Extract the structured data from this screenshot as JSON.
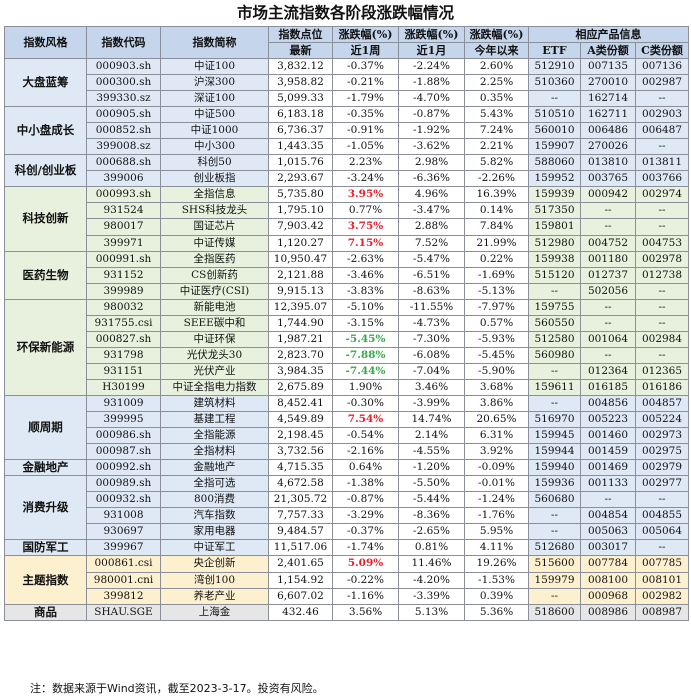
{
  "title": "市场主流指数各阶段涨跌幅情况",
  "headers": {
    "style": "指数风格",
    "code": "指数代码",
    "name": "指数简称",
    "level_top": "指数点位",
    "level_bottom": "最新",
    "chg_w_top": "涨跌幅(%)",
    "chg_w_bottom": "近1周",
    "chg_m_top": "涨跌幅(%)",
    "chg_m_bottom": "近1月",
    "chg_y_top": "涨跌幅(%)",
    "chg_y_bottom": "今年以来",
    "products": "相应产品信息",
    "etf": "ETF",
    "a_share": "A类份额",
    "c_share": "C类份额"
  },
  "colors": {
    "header_bg": "#c5d6ec",
    "up": "#e8202a",
    "down": "#39a84a"
  },
  "groups": [
    {
      "name": "大盘蓝筹",
      "theme": "blue",
      "rows": [
        {
          "code": "000903.sh",
          "name": "中证100",
          "level": "3,832.12",
          "w": "-0.37%",
          "m": "-2.24%",
          "y": "2.60%",
          "etf": "512910",
          "a": "007135",
          "c": "007136",
          "hl": ""
        },
        {
          "code": "000300.sh",
          "name": "沪深300",
          "level": "3,958.82",
          "w": "-0.21%",
          "m": "-1.88%",
          "y": "2.25%",
          "etf": "510360",
          "a": "270010",
          "c": "002987",
          "hl": ""
        },
        {
          "code": "399330.sz",
          "name": "深证100",
          "level": "5,099.33",
          "w": "-1.79%",
          "m": "-4.70%",
          "y": "0.35%",
          "etf": "--",
          "a": "162714",
          "c": "--",
          "hl": ""
        }
      ]
    },
    {
      "name": "中小盘成长",
      "theme": "blue",
      "rows": [
        {
          "code": "000905.sh",
          "name": "中证500",
          "level": "6,183.18",
          "w": "-0.35%",
          "m": "-0.87%",
          "y": "5.43%",
          "etf": "510510",
          "a": "162711",
          "c": "002903",
          "hl": ""
        },
        {
          "code": "000852.sh",
          "name": "中证1000",
          "level": "6,736.37",
          "w": "-0.91%",
          "m": "-1.92%",
          "y": "7.24%",
          "etf": "560010",
          "a": "006486",
          "c": "006487",
          "hl": ""
        },
        {
          "code": "399008.sz",
          "name": "中小300",
          "level": "1,443.35",
          "w": "-1.05%",
          "m": "-3.62%",
          "y": "2.21%",
          "etf": "159907",
          "a": "270026",
          "c": "--",
          "hl": ""
        }
      ]
    },
    {
      "name": "科创/创业板",
      "theme": "blue",
      "rows": [
        {
          "code": "000688.sh",
          "name": "科创50",
          "level": "1,015.76",
          "w": "2.23%",
          "m": "2.98%",
          "y": "5.82%",
          "etf": "588060",
          "a": "013810",
          "c": "013811",
          "hl": ""
        },
        {
          "code": "399006",
          "name": "创业板指",
          "level": "2,293.67",
          "w": "-3.24%",
          "m": "-6.36%",
          "y": "-2.26%",
          "etf": "159952",
          "a": "003765",
          "c": "003766",
          "hl": ""
        }
      ]
    },
    {
      "name": "科技创新",
      "theme": "green",
      "rows": [
        {
          "code": "000993.sh",
          "name": "全指信息",
          "level": "5,735.80",
          "w": "3.95%",
          "m": "4.96%",
          "y": "16.39%",
          "etf": "159939",
          "a": "000942",
          "c": "002974",
          "hl": "up"
        },
        {
          "code": "931524",
          "name": "SHS科技龙头",
          "level": "1,795.10",
          "w": "0.77%",
          "m": "-3.47%",
          "y": "0.14%",
          "etf": "517350",
          "a": "--",
          "c": "--",
          "hl": ""
        },
        {
          "code": "980017",
          "name": "国证芯片",
          "level": "7,903.42",
          "w": "3.75%",
          "m": "2.88%",
          "y": "7.84%",
          "etf": "159801",
          "a": "--",
          "c": "--",
          "hl": "up"
        },
        {
          "code": "399971",
          "name": "中证传媒",
          "level": "1,120.27",
          "w": "7.15%",
          "m": "7.52%",
          "y": "21.99%",
          "etf": "512980",
          "a": "004752",
          "c": "004753",
          "hl": "up"
        }
      ]
    },
    {
      "name": "医药生物",
      "theme": "green",
      "rows": [
        {
          "code": "000991.sh",
          "name": "全指医药",
          "level": "10,950.47",
          "w": "-2.63%",
          "m": "-5.47%",
          "y": "0.22%",
          "etf": "159938",
          "a": "001180",
          "c": "002978",
          "hl": ""
        },
        {
          "code": "931152",
          "name": "CS创新药",
          "level": "2,121.88",
          "w": "-3.46%",
          "m": "-6.51%",
          "y": "-1.69%",
          "etf": "515120",
          "a": "012737",
          "c": "012738",
          "hl": ""
        },
        {
          "code": "399989",
          "name": "中证医疗(CSI)",
          "level": "9,915.13",
          "w": "-3.83%",
          "m": "-8.63%",
          "y": "-5.13%",
          "etf": "--",
          "a": "502056",
          "c": "--",
          "hl": ""
        }
      ]
    },
    {
      "name": "环保新能源",
      "theme": "green",
      "rows": [
        {
          "code": "980032",
          "name": "新能电池",
          "level": "12,395.07",
          "w": "-5.10%",
          "m": "-11.55%",
          "y": "-7.97%",
          "etf": "159755",
          "a": "--",
          "c": "--",
          "hl": ""
        },
        {
          "code": "931755.csi",
          "name": "SEEE碳中和",
          "level": "1,744.90",
          "w": "-3.15%",
          "m": "-4.73%",
          "y": "0.57%",
          "etf": "560550",
          "a": "--",
          "c": "--",
          "hl": ""
        },
        {
          "code": "000827.sh",
          "name": "中证环保",
          "level": "1,987.21",
          "w": "-5.45%",
          "m": "-7.30%",
          "y": "-5.93%",
          "etf": "512580",
          "a": "001064",
          "c": "002984",
          "hl": "down"
        },
        {
          "code": "931798",
          "name": "光伏龙头30",
          "level": "2,823.70",
          "w": "-7.88%",
          "m": "-6.08%",
          "y": "-5.45%",
          "etf": "560980",
          "a": "--",
          "c": "--",
          "hl": "down"
        },
        {
          "code": "931151",
          "name": "光伏产业",
          "level": "3,984.35",
          "w": "-7.44%",
          "m": "-7.04%",
          "y": "-5.90%",
          "etf": "--",
          "a": "012364",
          "c": "012365",
          "hl": "down"
        },
        {
          "code": "H30199",
          "name": "中证全指电力指数",
          "level": "2,675.89",
          "w": "1.90%",
          "m": "3.46%",
          "y": "3.68%",
          "etf": "159611",
          "a": "016185",
          "c": "016186",
          "hl": ""
        }
      ]
    },
    {
      "name": "顺周期",
      "theme": "blue",
      "rows": [
        {
          "code": "931009",
          "name": "建筑材料",
          "level": "8,452.41",
          "w": "-0.30%",
          "m": "-3.99%",
          "y": "3.86%",
          "etf": "--",
          "a": "004856",
          "c": "004857",
          "hl": ""
        },
        {
          "code": "399995",
          "name": "基建工程",
          "level": "4,549.89",
          "w": "7.54%",
          "m": "14.74%",
          "y": "20.65%",
          "etf": "516970",
          "a": "005223",
          "c": "005224",
          "hl": "up"
        },
        {
          "code": "000986.sh",
          "name": "全指能源",
          "level": "2,198.45",
          "w": "-0.54%",
          "m": "2.14%",
          "y": "6.31%",
          "etf": "159945",
          "a": "001460",
          "c": "002973",
          "hl": ""
        },
        {
          "code": "000987.sh",
          "name": "全指材料",
          "level": "3,732.56",
          "w": "-2.16%",
          "m": "-4.55%",
          "y": "3.92%",
          "etf": "159944",
          "a": "001459",
          "c": "002975",
          "hl": ""
        }
      ]
    },
    {
      "name": "金融地产",
      "theme": "blue",
      "rows": [
        {
          "code": "000992.sh",
          "name": "金融地产",
          "level": "4,715.35",
          "w": "0.64%",
          "m": "-1.20%",
          "y": "-0.09%",
          "etf": "159940",
          "a": "001469",
          "c": "002979",
          "hl": ""
        }
      ]
    },
    {
      "name": "消费升级",
      "theme": "blue",
      "rows": [
        {
          "code": "000989.sh",
          "name": "全指可选",
          "level": "4,672.58",
          "w": "-1.38%",
          "m": "-5.50%",
          "y": "-0.01%",
          "etf": "159936",
          "a": "001133",
          "c": "002977",
          "hl": ""
        },
        {
          "code": "000932.sh",
          "name": "800消费",
          "level": "21,305.72",
          "w": "-0.87%",
          "m": "-5.44%",
          "y": "-1.24%",
          "etf": "560680",
          "a": "--",
          "c": "--",
          "hl": ""
        },
        {
          "code": "931008",
          "name": "汽车指数",
          "level": "7,757.33",
          "w": "-3.29%",
          "m": "-8.36%",
          "y": "-1.76%",
          "etf": "--",
          "a": "004854",
          "c": "004855",
          "hl": ""
        },
        {
          "code": "930697",
          "name": "家用电器",
          "level": "9,484.57",
          "w": "-0.37%",
          "m": "-2.65%",
          "y": "5.95%",
          "etf": "--",
          "a": "005063",
          "c": "005064",
          "hl": ""
        }
      ]
    },
    {
      "name": "国防军工",
      "theme": "blue",
      "rows": [
        {
          "code": "399967",
          "name": "中证军工",
          "level": "11,517.06",
          "w": "-1.74%",
          "m": "0.81%",
          "y": "4.11%",
          "etf": "512680",
          "a": "003017",
          "c": "--",
          "hl": ""
        }
      ]
    },
    {
      "name": "主题指数",
      "theme": "yellow",
      "rows": [
        {
          "code": "000861.csi",
          "name": "央企创新",
          "level": "2,401.65",
          "w": "5.09%",
          "m": "11.46%",
          "y": "19.26%",
          "etf": "515600",
          "a": "007784",
          "c": "007785",
          "hl": "up"
        },
        {
          "code": "980001.cni",
          "name": "湾创100",
          "level": "1,154.92",
          "w": "-0.22%",
          "m": "-4.20%",
          "y": "-1.53%",
          "etf": "159979",
          "a": "008100",
          "c": "008101",
          "hl": ""
        },
        {
          "code": "399812",
          "name": "养老产业",
          "level": "6,607.02",
          "w": "-1.16%",
          "m": "-3.39%",
          "y": "0.39%",
          "etf": "--",
          "a": "000968",
          "c": "002982",
          "hl": ""
        }
      ]
    },
    {
      "name": "商品",
      "theme": "grey",
      "rows": [
        {
          "code": "SHAU.SGE",
          "name": "上海金",
          "level": "432.46",
          "w": "3.56%",
          "m": "5.13%",
          "y": "5.36%",
          "etf": "518600",
          "a": "008986",
          "c": "008987",
          "hl": ""
        }
      ]
    }
  ],
  "note": "注：数据来源于Wind资讯，截至2023-3-17。投资有风险。"
}
